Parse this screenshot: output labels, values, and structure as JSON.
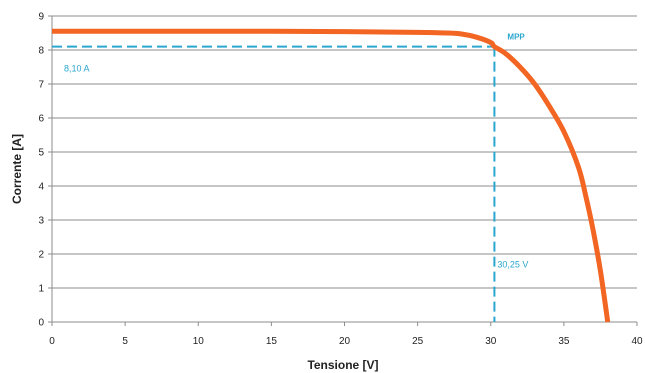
{
  "chart_data": {
    "type": "line",
    "title": "",
    "xlabel": "Tensione [V]",
    "ylabel": "Corrente [A]",
    "xlim": [
      0,
      40
    ],
    "ylim": [
      0,
      9
    ],
    "x_ticks": [
      "0",
      "5",
      "10",
      "15",
      "20",
      "25",
      "30",
      "35",
      "40"
    ],
    "y_ticks": [
      "0",
      "1",
      "2",
      "3",
      "4",
      "5",
      "6",
      "7",
      "8",
      "9"
    ],
    "grid": "horizontal",
    "legend": "none",
    "series": [
      {
        "color": "#f26522",
        "points": [
          [
            0,
            8.55
          ],
          [
            5,
            8.55
          ],
          [
            10,
            8.55
          ],
          [
            15,
            8.55
          ],
          [
            20,
            8.54
          ],
          [
            25,
            8.52
          ],
          [
            27,
            8.5
          ],
          [
            28,
            8.47
          ],
          [
            29,
            8.38
          ],
          [
            30,
            8.22
          ],
          [
            30.25,
            8.1
          ],
          [
            31,
            7.9
          ],
          [
            32,
            7.5
          ],
          [
            33,
            7.0
          ],
          [
            34,
            6.35
          ],
          [
            35,
            5.6
          ],
          [
            36,
            4.55
          ],
          [
            36.5,
            3.7
          ],
          [
            37,
            2.7
          ],
          [
            37.5,
            1.5
          ],
          [
            38,
            0.0
          ]
        ]
      }
    ],
    "annotations": {
      "color": "#2aa6cf",
      "mpp": {
        "label": "MPP",
        "x": 30.25,
        "y": 8.1
      },
      "current_label": "8,10 A",
      "voltage_label": "30,25 V"
    }
  }
}
